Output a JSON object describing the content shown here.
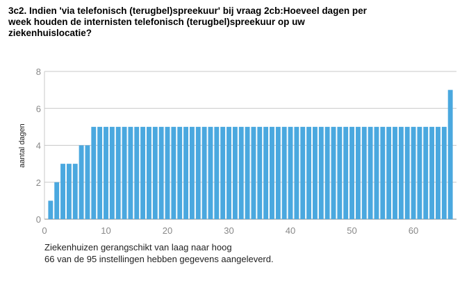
{
  "title": "3c2. Indien 'via telefonisch (terugbel)spreekuur' bij vraag 2cb:Hoeveel dagen per\nweek houden de internisten telefonisch (terugbel)spreekuur op uw\nziekenhuislocatie?",
  "notes": {
    "line1": "Ziekenhuizen gerangschikt van laag naar hoog",
    "line2": "66 van de 95 instellingen hebben gegevens aangeleverd."
  },
  "chart_data": {
    "type": "bar",
    "title": "",
    "xlabel": "",
    "ylabel": "aantal dagen",
    "xlim": [
      0,
      67
    ],
    "ylim": [
      0,
      8
    ],
    "xticks": [
      0,
      10,
      20,
      30,
      40,
      50,
      60
    ],
    "yticks": [
      0,
      2,
      4,
      6,
      8
    ],
    "grid": true,
    "bar_color": "#4aa8df",
    "x": [
      1,
      2,
      3,
      4,
      5,
      6,
      7,
      8,
      9,
      10,
      11,
      12,
      13,
      14,
      15,
      16,
      17,
      18,
      19,
      20,
      21,
      22,
      23,
      24,
      25,
      26,
      27,
      28,
      29,
      30,
      31,
      32,
      33,
      34,
      35,
      36,
      37,
      38,
      39,
      40,
      41,
      42,
      43,
      44,
      45,
      46,
      47,
      48,
      49,
      50,
      51,
      52,
      53,
      54,
      55,
      56,
      57,
      58,
      59,
      60,
      61,
      62,
      63,
      64,
      65,
      66
    ],
    "values": [
      1,
      2,
      3,
      3,
      3,
      4,
      4,
      5,
      5,
      5,
      5,
      5,
      5,
      5,
      5,
      5,
      5,
      5,
      5,
      5,
      5,
      5,
      5,
      5,
      5,
      5,
      5,
      5,
      5,
      5,
      5,
      5,
      5,
      5,
      5,
      5,
      5,
      5,
      5,
      5,
      5,
      5,
      5,
      5,
      5,
      5,
      5,
      5,
      5,
      5,
      5,
      5,
      5,
      5,
      5,
      5,
      5,
      5,
      5,
      5,
      5,
      5,
      5,
      5,
      5,
      7
    ]
  }
}
